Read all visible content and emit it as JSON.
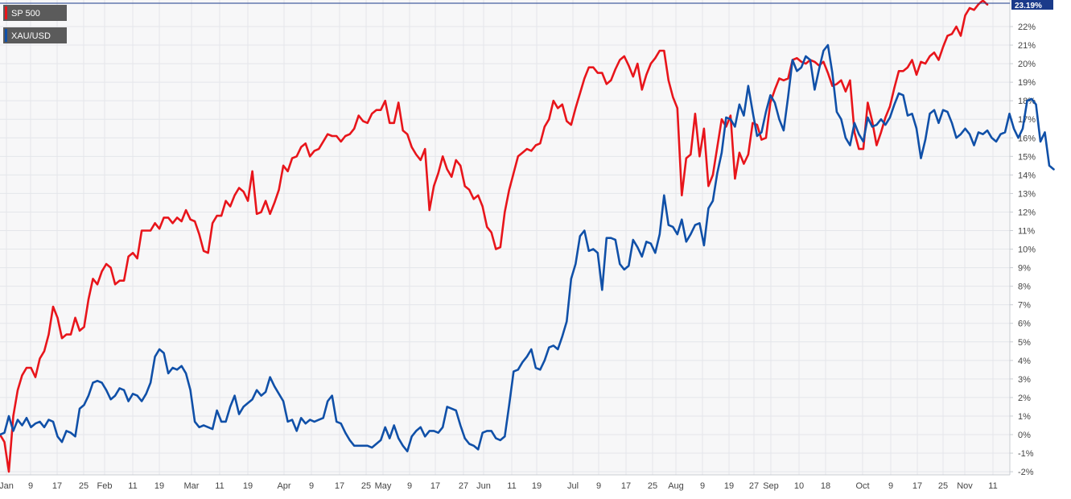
{
  "chart_data": {
    "type": "line",
    "title": "",
    "xlabel": "",
    "ylabel": "",
    "ylim": [
      -2,
      23.5
    ],
    "y_unit": "%",
    "grid": true,
    "legend_position": "top-left",
    "y_ticks": [
      "-2%",
      "-1%",
      "0%",
      "1%",
      "2%",
      "3%",
      "4%",
      "5%",
      "6%",
      "7%",
      "8%",
      "9%",
      "10%",
      "11%",
      "12%",
      "13%",
      "14%",
      "15%",
      "16%",
      "17%",
      "18%",
      "19%",
      "20%",
      "21%",
      "22%"
    ],
    "x_ticks": [
      "Jan",
      "9",
      "17",
      "25",
      "Feb",
      "11",
      "19",
      "Mar",
      "11",
      "19",
      "Apr",
      "9",
      "17",
      "25",
      "May",
      "9",
      "17",
      "27",
      "Jun",
      "11",
      "19",
      "Jul",
      "9",
      "17",
      "25",
      "Aug",
      "9",
      "19",
      "27",
      "Sep",
      "10",
      "18",
      "Oct",
      "9",
      "17",
      "25",
      "Nov",
      "11"
    ],
    "last_value_label": "23.19%",
    "series": [
      {
        "name": "SP 500",
        "color": "#e8151b",
        "values": [
          0,
          -0.4,
          -2,
          1,
          2.4,
          3.2,
          3.6,
          3.6,
          3.1,
          4.1,
          4.5,
          5.4,
          6.9,
          6.3,
          5.2,
          5.4,
          5.4,
          6.3,
          5.6,
          5.8,
          7.3,
          8.4,
          8.1,
          8.8,
          9.2,
          9,
          8.1,
          8.3,
          8.3,
          9.6,
          9.8,
          9.5,
          11,
          11,
          11,
          11.4,
          11.1,
          11.7,
          11.7,
          11.4,
          11.7,
          11.5,
          12.1,
          11.6,
          11.5,
          10.8,
          9.9,
          9.8,
          11.4,
          11.8,
          11.8,
          12.6,
          12.3,
          12.9,
          13.3,
          13.1,
          12.6,
          14.2,
          11.9,
          12,
          12.6,
          11.9,
          12.5,
          13.2,
          14.5,
          14.2,
          14.9,
          15,
          15.5,
          15.7,
          15,
          15.3,
          15.4,
          15.8,
          16.2,
          16.1,
          16.1,
          15.8,
          16.1,
          16.2,
          16.5,
          17.2,
          16.9,
          16.8,
          17.3,
          17.5,
          17.5,
          18,
          16.8,
          16.8,
          17.9,
          16.4,
          16.2,
          15.5,
          15.1,
          14.8,
          15.4,
          12.1,
          13.4,
          14.1,
          15,
          14.3,
          13.9,
          14.8,
          14.5,
          13.4,
          13.2,
          12.7,
          12.9,
          12.3,
          11.2,
          10.9,
          10,
          10.1,
          12,
          13.2,
          14.1,
          15,
          15.2,
          15.4,
          15.3,
          15.6,
          15.7,
          16.6,
          17,
          18,
          17.6,
          17.8,
          16.9,
          16.7,
          17.6,
          18.4,
          19.2,
          19.8,
          19.8,
          19.5,
          19.5,
          18.9,
          19.1,
          19.7,
          20.2,
          20.4,
          19.9,
          19.3,
          20,
          18.6,
          19.4,
          20,
          20.3,
          20.7,
          20.7,
          19.1,
          18.2,
          17.6,
          12.9,
          14.9,
          15.1,
          17.3,
          15,
          16.5,
          13.4,
          14,
          15.5,
          17,
          16.6,
          17.2,
          13.8,
          15.2,
          14.6,
          15.1,
          16.8,
          16.7,
          15.9,
          16,
          17.9,
          18.6,
          19.2,
          19.1,
          19.2,
          20.2,
          20.3,
          20.1,
          20,
          20.2,
          20.1,
          19.9,
          20.1,
          19.5,
          18.8,
          18.9,
          19.1,
          18.5,
          19.1,
          16.3,
          15.4,
          15.4,
          17.9,
          16.9,
          15.6,
          16.3,
          17.1,
          17.7,
          18.7,
          19.6,
          19.6,
          19.8,
          20.2,
          19.4,
          20.1,
          20,
          20.4,
          20.6,
          20.2,
          20.9,
          21.5,
          21.6,
          22,
          21.5,
          22.6,
          23,
          22.9,
          23.2,
          23.4,
          23.19
        ]
      },
      {
        "name": "XAU/USD",
        "color": "#1050a8",
        "values": [
          0,
          0.1,
          1,
          0.2,
          0.8,
          0.5,
          0.9,
          0.4,
          0.6,
          0.7,
          0.4,
          0.8,
          0.7,
          -0.1,
          -0.4,
          0.2,
          0.1,
          -0.1,
          1.4,
          1.6,
          2.1,
          2.8,
          2.9,
          2.8,
          2.4,
          1.9,
          2.1,
          2.5,
          2.4,
          1.8,
          2.2,
          2.1,
          1.8,
          2.2,
          2.8,
          4.2,
          4.6,
          4.4,
          3.3,
          3.6,
          3.5,
          3.7,
          3.3,
          2.4,
          0.7,
          0.4,
          0.5,
          0.4,
          0.3,
          1.3,
          0.7,
          0.7,
          1.5,
          2.1,
          1.1,
          1.5,
          1.7,
          1.9,
          2.4,
          2.1,
          2.3,
          3.1,
          2.6,
          2.2,
          1.8,
          0.7,
          0.8,
          0.2,
          0.9,
          0.6,
          0.8,
          0.7,
          0.8,
          0.9,
          1.8,
          2.1,
          0.7,
          0.6,
          0.1,
          -0.3,
          -0.6,
          -0.6,
          -0.6,
          -0.6,
          -0.7,
          -0.5,
          -0.3,
          0.4,
          -0.2,
          0.5,
          -0.2,
          -0.6,
          -0.9,
          -0.1,
          0.2,
          0.4,
          -0.1,
          0.2,
          0.2,
          0.1,
          0.4,
          1.5,
          1.4,
          1.3,
          0.5,
          -0.2,
          -0.5,
          -0.6,
          -0.8,
          0.1,
          0.2,
          0.2,
          -0.2,
          -0.3,
          -0.1,
          1.6,
          3.4,
          3.5,
          3.9,
          4.2,
          4.6,
          3.6,
          3.5,
          4,
          4.7,
          4.8,
          4.6,
          5.3,
          6.1,
          8.4,
          9.2,
          10.7,
          11,
          9.9,
          10,
          9.8,
          7.8,
          10.6,
          10.6,
          10.5,
          9.2,
          8.9,
          9.1,
          10.5,
          10.1,
          9.6,
          10.4,
          10.3,
          9.8,
          10.8,
          12.9,
          11.3,
          11.2,
          10.8,
          11.6,
          10.4,
          10.8,
          11.3,
          11.4,
          10.2,
          12.2,
          12.6,
          14.1,
          15.2,
          17.1,
          17,
          16.6,
          17.8,
          17.2,
          18.8,
          17.4,
          16.1,
          16.3,
          17.4,
          18.3,
          17.9,
          17,
          16.4,
          18.2,
          20.2,
          19.6,
          19.8,
          20.4,
          20.2,
          18.6,
          19.7,
          20.7,
          21,
          19.5,
          17.4,
          17,
          16,
          15.6,
          16.8,
          16.2,
          15.8,
          17.1,
          16.6,
          16.7,
          17,
          16.7,
          17.1,
          17.8,
          18.4,
          18.3,
          17.2,
          17.3,
          16.5,
          14.9,
          15.9,
          17.3,
          17.5,
          16.8,
          17.5,
          17.4,
          16.8,
          16,
          16.2,
          16.5,
          16.2,
          15.6,
          16.3,
          16.2,
          16.4,
          16,
          15.8,
          16.2,
          16.3,
          17.3,
          16.5,
          16,
          16.5,
          18,
          18.1,
          17.8,
          15.8,
          16.3,
          14.5,
          14.3
        ]
      }
    ]
  }
}
